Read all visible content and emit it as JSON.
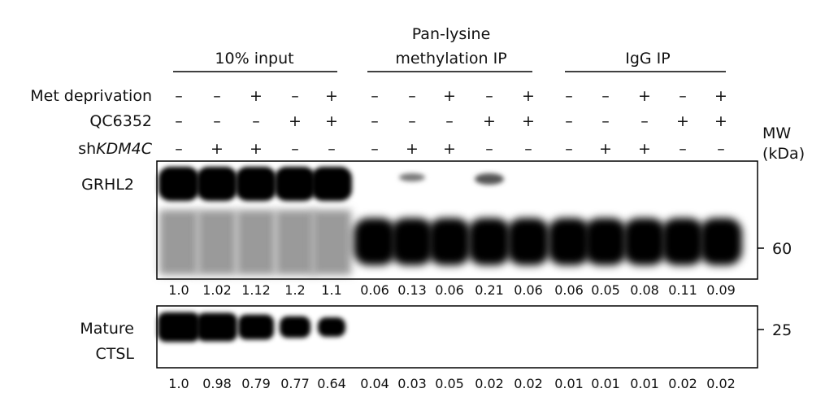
{
  "groups": [
    {
      "lines": [
        "10% input"
      ]
    },
    {
      "lines": [
        "Pan-lysine",
        "methylation IP"
      ]
    },
    {
      "lines": [
        "IgG IP"
      ]
    }
  ],
  "conditions": [
    {
      "label": "Met deprivation",
      "signs": [
        "–",
        "–",
        "+",
        "–",
        "+",
        "–",
        "–",
        "+",
        "–",
        "+",
        "–",
        "–",
        "+",
        "–",
        "+"
      ]
    },
    {
      "label": "QC6352",
      "signs": [
        "–",
        "–",
        "–",
        "+",
        "+",
        "–",
        "–",
        "–",
        "+",
        "+",
        "–",
        "–",
        "–",
        "+",
        "+"
      ]
    },
    {
      "label_prefix": "sh",
      "label_italic": "KDM4C",
      "signs": [
        "–",
        "+",
        "+",
        "–",
        "–",
        "–",
        "+",
        "+",
        "–",
        "–",
        "–",
        "+",
        "+",
        "–",
        "–"
      ]
    }
  ],
  "mw": [
    "MW",
    "(kDa)"
  ],
  "blots": [
    {
      "label": [
        "GRHL2"
      ],
      "marker": "60",
      "quant": [
        "1.0",
        "1.02",
        "1.12",
        "1.2",
        "1.1",
        "0.06",
        "0.13",
        "0.06",
        "0.21",
        "0.06",
        "0.06",
        "0.05",
        "0.08",
        "0.11",
        "0.09"
      ]
    },
    {
      "label": [
        "Mature",
        "CTSL"
      ],
      "marker": "25",
      "quant": [
        "1.0",
        "0.98",
        "0.79",
        "0.77",
        "0.64",
        "0.04",
        "0.03",
        "0.05",
        "0.02",
        "0.02",
        "0.01",
        "0.01",
        "0.01",
        "0.02",
        "0.02"
      ]
    }
  ]
}
